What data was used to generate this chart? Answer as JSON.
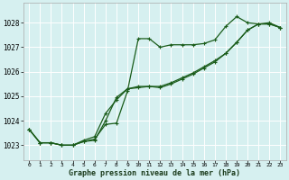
{
  "title": "Graphe pression niveau de la mer (hPa)",
  "bg_color": "#d6f0f0",
  "line_color": "#1a5c1a",
  "markersize": 2.5,
  "linewidth": 0.9,
  "xlim": [
    -0.5,
    23.5
  ],
  "ylim": [
    1022.4,
    1028.8
  ],
  "yticks": [
    1023,
    1024,
    1025,
    1026,
    1027,
    1028
  ],
  "xticks": [
    0,
    1,
    2,
    3,
    4,
    5,
    6,
    7,
    8,
    9,
    10,
    11,
    12,
    13,
    14,
    15,
    16,
    17,
    18,
    19,
    20,
    21,
    22,
    23
  ],
  "series1": [
    1023.65,
    1023.1,
    1023.1,
    1023.0,
    1023.0,
    1023.15,
    1023.25,
    1023.85,
    1023.9,
    1025.2,
    1027.35,
    1027.35,
    1027.0,
    1027.1,
    1027.1,
    1027.1,
    1027.15,
    1027.3,
    1027.85,
    1028.25,
    1028.0,
    1027.95,
    1028.0,
    1027.8
  ],
  "series2": [
    1023.65,
    1023.1,
    1023.1,
    1023.0,
    1023.0,
    1023.2,
    1023.35,
    1024.3,
    1024.85,
    1025.3,
    1025.4,
    1025.4,
    1025.4,
    1025.55,
    1025.75,
    1025.95,
    1026.2,
    1026.45,
    1026.75,
    1027.2,
    1027.7,
    1027.95,
    1027.95,
    1027.8
  ],
  "series3": [
    1023.65,
    1023.1,
    1023.1,
    1023.0,
    1023.0,
    1023.15,
    1023.2,
    1024.0,
    1024.95,
    1025.3,
    1025.35,
    1025.4,
    1025.35,
    1025.5,
    1025.7,
    1025.9,
    1026.15,
    1026.4,
    1026.75,
    1027.2,
    1027.7,
    1027.95,
    1027.95,
    1027.8
  ]
}
